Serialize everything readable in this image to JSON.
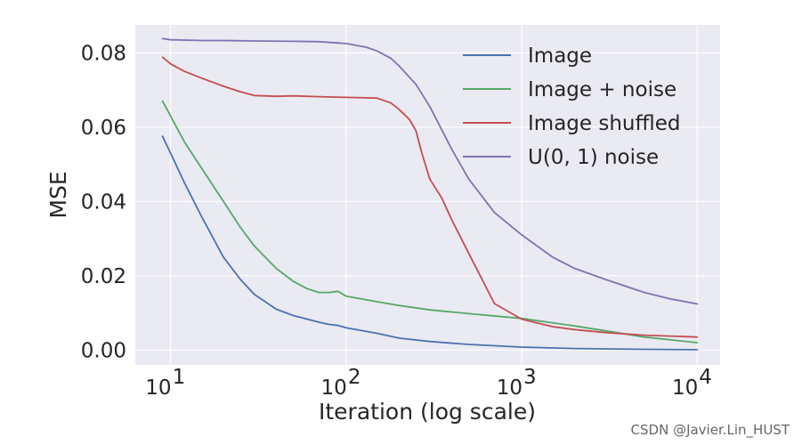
{
  "chart_data": {
    "type": "line",
    "title": "",
    "xlabel": "Iteration (log scale)",
    "ylabel": "MSE",
    "xscale": "log",
    "xlim": [
      6.3,
      13500
    ],
    "ylim": [
      -0.004,
      0.0875
    ],
    "grid": true,
    "legend_position": "top-right",
    "x_ticks": [
      {
        "value": 10,
        "base": "10",
        "exp": "1"
      },
      {
        "value": 100,
        "base": "10",
        "exp": "2"
      },
      {
        "value": 1000,
        "base": "10",
        "exp": "3"
      },
      {
        "value": 10000,
        "base": "10",
        "exp": "4"
      }
    ],
    "y_ticks": [
      {
        "value": 0.0,
        "label": "0.00"
      },
      {
        "value": 0.02,
        "label": "0.02"
      },
      {
        "value": 0.04,
        "label": "0.04"
      },
      {
        "value": 0.06,
        "label": "0.06"
      },
      {
        "value": 0.08,
        "label": "0.08"
      }
    ],
    "series": [
      {
        "name": "Image",
        "color": "#4c72b0",
        "x": [
          9,
          10,
          12,
          15,
          20,
          25,
          30,
          40,
          50,
          60,
          70,
          80,
          90,
          100,
          150,
          200,
          300,
          500,
          1000,
          2000,
          5000,
          10000
        ],
        "y": [
          0.0575,
          0.053,
          0.045,
          0.036,
          0.025,
          0.019,
          0.015,
          0.011,
          0.0093,
          0.0083,
          0.0075,
          0.0069,
          0.0066,
          0.006,
          0.0045,
          0.0032,
          0.0023,
          0.0015,
          0.0008,
          0.0004,
          0.0002,
          0.0001
        ]
      },
      {
        "name": "Image + noise",
        "color": "#55a868",
        "x": [
          9,
          10,
          12,
          15,
          20,
          25,
          30,
          40,
          50,
          60,
          70,
          80,
          90,
          100,
          150,
          200,
          300,
          500,
          1000,
          2000,
          5000,
          10000
        ],
        "y": [
          0.067,
          0.063,
          0.056,
          0.049,
          0.04,
          0.033,
          0.028,
          0.022,
          0.0185,
          0.0165,
          0.0155,
          0.0155,
          0.0158,
          0.0145,
          0.013,
          0.012,
          0.0108,
          0.0098,
          0.0085,
          0.0065,
          0.0035,
          0.002
        ]
      },
      {
        "name": "Image shuffled",
        "color": "#c44e52",
        "x": [
          9,
          10,
          12,
          15,
          20,
          25,
          30,
          40,
          50,
          70,
          100,
          150,
          180,
          200,
          230,
          250,
          270,
          300,
          350,
          400,
          500,
          700,
          1000,
          1500,
          2000,
          3000,
          5000,
          10000
        ],
        "y": [
          0.0788,
          0.077,
          0.075,
          0.0732,
          0.071,
          0.0695,
          0.0685,
          0.0683,
          0.0684,
          0.0682,
          0.068,
          0.0678,
          0.0665,
          0.0648,
          0.062,
          0.059,
          0.053,
          0.046,
          0.041,
          0.035,
          0.026,
          0.0125,
          0.0083,
          0.0063,
          0.0055,
          0.0047,
          0.004,
          0.0035
        ]
      },
      {
        "name": "U(0, 1) noise",
        "color": "#8172b2",
        "x": [
          9,
          10,
          15,
          20,
          30,
          50,
          70,
          100,
          130,
          150,
          180,
          200,
          250,
          300,
          400,
          500,
          700,
          1000,
          1500,
          2000,
          3000,
          5000,
          7000,
          10000
        ],
        "y": [
          0.0838,
          0.0835,
          0.0833,
          0.0833,
          0.0832,
          0.0831,
          0.083,
          0.0825,
          0.0815,
          0.0805,
          0.0785,
          0.0765,
          0.0715,
          0.0655,
          0.054,
          0.046,
          0.037,
          0.031,
          0.025,
          0.022,
          0.019,
          0.0155,
          0.0138,
          0.0124
        ]
      }
    ]
  },
  "watermark": "CSDN @Javier.Lin_HUST"
}
